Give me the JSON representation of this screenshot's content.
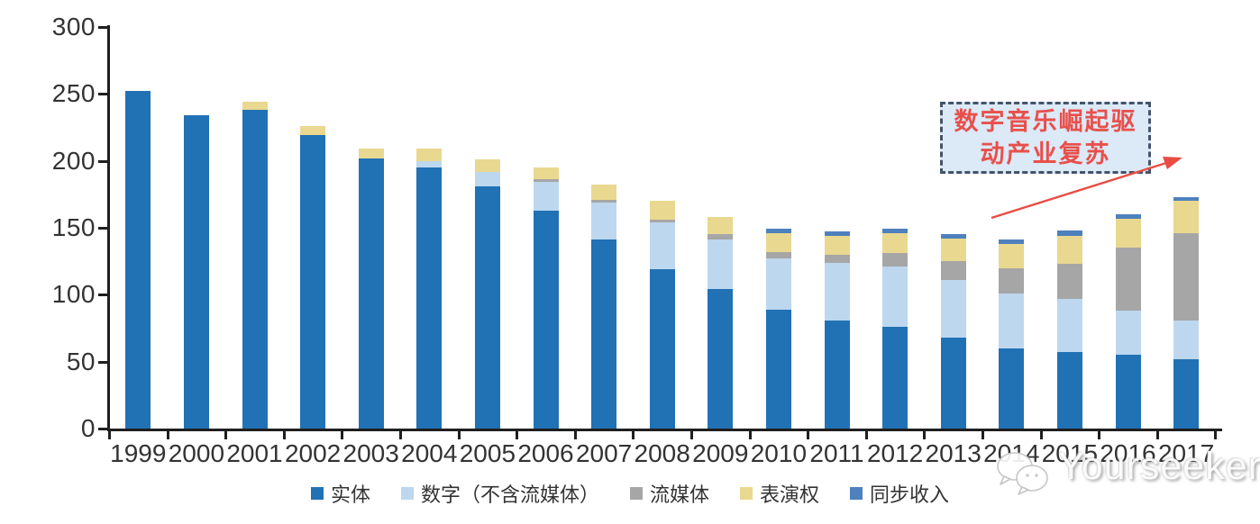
{
  "chart_data": {
    "type": "bar",
    "stacked": true,
    "categories": [
      "1999",
      "2000",
      "2001",
      "2002",
      "2003",
      "2004",
      "2005",
      "2006",
      "2007",
      "2008",
      "2009",
      "2010",
      "2011",
      "2012",
      "2013",
      "2014",
      "2015",
      "2016",
      "2017"
    ],
    "series": [
      {
        "name": "实体",
        "color": "#2171B5",
        "values": [
          252,
          234,
          238,
          219,
          202,
          195,
          181,
          163,
          141,
          119,
          104,
          89,
          81,
          76,
          68,
          60,
          57,
          55,
          52
        ]
      },
      {
        "name": "数字（不含流媒体）",
        "color": "#BDD7EE",
        "values": [
          0,
          0,
          0,
          0,
          0,
          5,
          11,
          21,
          28,
          35,
          37,
          38,
          43,
          45,
          43,
          41,
          40,
          33,
          29
        ]
      },
      {
        "name": "流媒体",
        "color": "#A6A6A6",
        "values": [
          0,
          0,
          0,
          0,
          0,
          0,
          0,
          2,
          2,
          2,
          4,
          5,
          6,
          10,
          14,
          19,
          26,
          47,
          65
        ]
      },
      {
        "name": "表演权",
        "color": "#E9D88F",
        "values": [
          0,
          0,
          6,
          7,
          7,
          9,
          9,
          9,
          11,
          14,
          13,
          14,
          14,
          15,
          17,
          18,
          21,
          22,
          24
        ]
      },
      {
        "name": "同步收入",
        "color": "#4E81BD",
        "values": [
          0,
          0,
          0,
          0,
          0,
          0,
          0,
          0,
          0,
          0,
          0,
          3,
          3,
          3,
          3,
          3,
          4,
          3,
          3
        ]
      }
    ],
    "totals": [
      252,
      234,
      244,
      226,
      209,
      209,
      201,
      195,
      182,
      170,
      158,
      149,
      147,
      149,
      145,
      141,
      148,
      160,
      173
    ],
    "y_ticks": [
      0,
      50,
      100,
      150,
      200,
      250,
      300
    ],
    "ylim": [
      0,
      300
    ],
    "xlabel": "",
    "ylabel": "",
    "title": "",
    "grid": false,
    "legend_position": "bottom"
  },
  "annotation": {
    "full_text": "数字音乐崛起驱动产业复苏",
    "line1": "数字音乐崛起驱",
    "line2": "动产业复苏",
    "text_color": "#E8504B",
    "box_fill": "#DCE9F7",
    "box_border_color": "#44546A",
    "arrow_color": "#E94C43"
  },
  "watermark": {
    "text": "Yourseeker",
    "icon": "chat-bubbles-icon"
  },
  "colors": {
    "axis": "#1f1f1f",
    "tick_label": "#333333",
    "background": "#ffffff"
  }
}
